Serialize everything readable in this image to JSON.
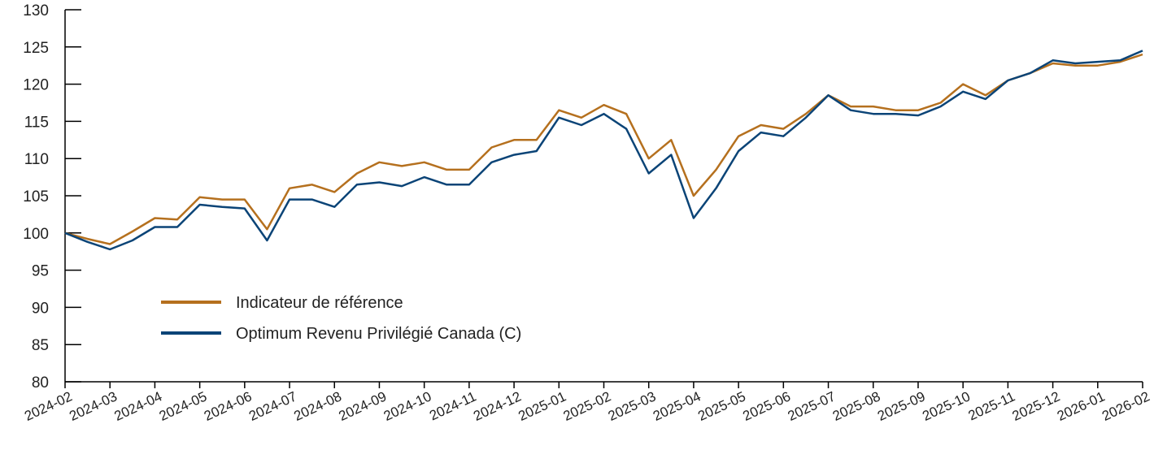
{
  "chart_data": {
    "type": "line",
    "x": [
      0,
      0.5,
      1,
      1.5,
      2,
      2.5,
      3,
      3.5,
      4,
      4.5,
      5,
      5.5,
      6,
      6.5,
      7,
      7.5,
      8,
      8.5,
      9,
      9.5,
      10,
      10.5,
      11,
      11.5,
      12,
      12.5,
      13,
      13.5,
      14,
      14.5,
      15,
      15.5,
      16,
      16.5,
      17,
      17.5,
      18,
      18.5,
      19,
      19.5,
      20,
      20.5,
      21,
      21.5,
      22,
      22.5,
      23,
      23.5,
      24
    ],
    "series": [
      {
        "name": "Indicateur de référence",
        "color": "#b5701e",
        "values": [
          100,
          99.2,
          98.5,
          100.2,
          102,
          101.8,
          104.8,
          104.5,
          104.5,
          100.5,
          106,
          106.5,
          105.5,
          108,
          109.5,
          109,
          109.5,
          108.5,
          108.5,
          111.5,
          112.5,
          112.5,
          116.5,
          115.5,
          117.2,
          116,
          110,
          112.5,
          105,
          108.5,
          113,
          114.5,
          114,
          116,
          118.5,
          117,
          117,
          116.5,
          116.5,
          117.5,
          120,
          118.5,
          120.5,
          121.5,
          122.8,
          122.5,
          122.5,
          123,
          124
        ]
      },
      {
        "name": "Optimum Revenu Privilégié Canada (C)",
        "color": "#0b4477",
        "values": [
          100,
          98.8,
          97.8,
          99,
          100.8,
          100.8,
          103.8,
          103.5,
          103.3,
          99,
          104.5,
          104.5,
          103.5,
          106.5,
          106.8,
          106.3,
          107.5,
          106.5,
          106.5,
          109.5,
          110.5,
          111,
          115.5,
          114.5,
          116,
          114,
          108,
          110.5,
          102,
          106,
          111,
          113.5,
          113,
          115.5,
          118.5,
          116.5,
          116,
          116,
          115.8,
          117,
          119,
          118,
          120.5,
          121.5,
          123.2,
          122.8,
          123,
          123.2,
          124.5
        ]
      }
    ],
    "xlim": [
      0,
      24
    ],
    "xticks": [
      {
        "value": 0,
        "label": "2024-02"
      },
      {
        "value": 1,
        "label": "2024-03"
      },
      {
        "value": 2,
        "label": "2024-04"
      },
      {
        "value": 3,
        "label": "2024-05"
      },
      {
        "value": 4,
        "label": "2024-06"
      },
      {
        "value": 5,
        "label": "2024-07"
      },
      {
        "value": 6,
        "label": "2024-08"
      },
      {
        "value": 7,
        "label": "2024-09"
      },
      {
        "value": 8,
        "label": "2024-10"
      },
      {
        "value": 9,
        "label": "2024-11"
      },
      {
        "value": 10,
        "label": "2024-12"
      },
      {
        "value": 11,
        "label": "2025-01"
      },
      {
        "value": 12,
        "label": "2025-02"
      },
      {
        "value": 13,
        "label": "2025-03"
      },
      {
        "value": 14,
        "label": "2025-04"
      },
      {
        "value": 15,
        "label": "2025-05"
      },
      {
        "value": 16,
        "label": "2025-06"
      },
      {
        "value": 17,
        "label": "2025-07"
      },
      {
        "value": 18,
        "label": "2025-08"
      },
      {
        "value": 19,
        "label": "2025-09"
      },
      {
        "value": 20,
        "label": "2025-10"
      },
      {
        "value": 21,
        "label": "2025-11"
      },
      {
        "value": 22,
        "label": "2025-12"
      },
      {
        "value": 23,
        "label": "2026-01"
      },
      {
        "value": 24,
        "label": "2026-02"
      }
    ],
    "ylim": [
      80,
      130
    ],
    "yticks": [
      80,
      85,
      90,
      95,
      100,
      105,
      110,
      115,
      120,
      125,
      130
    ],
    "grid": false,
    "legend": "left"
  }
}
